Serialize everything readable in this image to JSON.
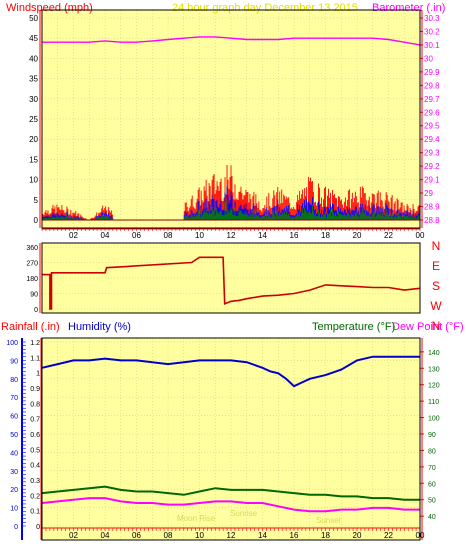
{
  "header": {
    "left_label": "Windspeed (mph)",
    "center_label": "24 hour graph day   December 13 2015",
    "right_label": "Barometer (.in)"
  },
  "panel3_header": {
    "rain_label": "Rainfall (.in)",
    "humidity_label": "Humidity (%)",
    "temperature_label": "Temperature (°F)",
    "dewpoint_label": "Dew Point (°F)"
  },
  "legend_faint": {
    "moonrise": "Moon Rise",
    "sunrise": "Sunrise",
    "sunset": "Sunset"
  },
  "colors": {
    "plot_bg": "#ffffa0",
    "frame": "#000000",
    "windspeed": "#ff0000",
    "windgust": "#0000ff",
    "windavg": "#008000",
    "barometer": "#ff00ff",
    "direction": "#cc0000",
    "humidity": "#0000cc",
    "temperature": "#006600",
    "dewpoint": "#ff00ff",
    "rain": "#0000ff",
    "title_yellow": "#e0e000",
    "axis_red": "#ff0000"
  },
  "chart_data": [
    {
      "type": "line",
      "title": "24 hour graph day   December 13 2015",
      "x_ticks": [
        "02",
        "04",
        "06",
        "08",
        "10",
        "12",
        "14",
        "16",
        "18",
        "20",
        "22",
        "00"
      ],
      "left_axis": {
        "label": "Windspeed (mph)",
        "ticks": [
          0,
          5,
          10,
          15,
          20,
          25,
          30,
          35,
          40,
          45,
          50
        ],
        "ylim": [
          0,
          50
        ]
      },
      "right_axis": {
        "label": "Barometer (.in)",
        "ticks": [
          "28.8",
          "28.9",
          "29",
          "29.1",
          "29.2",
          "29.3",
          "29.4",
          "29.5",
          "29.6",
          "29.7",
          "29.8",
          "29.9",
          "30",
          "30.1",
          "30.2",
          "30.3"
        ],
        "ylim": [
          28.8,
          30.3
        ]
      },
      "series": [
        {
          "axis": "right",
          "hours": [
            0,
            1,
            2,
            3,
            4,
            5,
            6,
            7,
            8,
            9,
            10,
            11,
            12,
            13,
            14,
            15,
            16,
            17,
            18,
            19,
            20,
            21,
            22,
            23,
            24
          ],
          "values": [
            30.12,
            30.12,
            30.12,
            30.12,
            30.13,
            30.12,
            30.12,
            30.13,
            30.14,
            30.15,
            30.16,
            30.16,
            30.15,
            30.14,
            30.14,
            30.14,
            30.15,
            30.15,
            30.15,
            30.15,
            30.15,
            30.15,
            30.14,
            30.12,
            30.1
          ]
        },
        {
          "axis": "left",
          "hours": [
            0,
            1,
            2,
            3,
            4,
            5,
            6,
            7,
            8,
            9,
            10,
            11,
            12,
            13,
            14,
            15,
            16,
            17,
            18,
            19,
            20,
            21,
            22,
            23,
            24
          ],
          "values": [
            2,
            3,
            2,
            0,
            3,
            0,
            0,
            0,
            0,
            3,
            6,
            9,
            10,
            6,
            4,
            6,
            4,
            8,
            6,
            5,
            6,
            6,
            5,
            3,
            3
          ]
        }
      ]
    },
    {
      "type": "line",
      "left_axis": {
        "ticks": [
          0,
          90,
          180,
          270,
          360
        ],
        "ylim": [
          0,
          360
        ]
      },
      "right_axis": {
        "ticks": [
          "N",
          "E",
          "S",
          "W",
          "N"
        ]
      },
      "series": [
        {
          "hours": [
            0,
            0.5,
            0.5,
            0.6,
            0.6,
            4,
            4.1,
            9.5,
            10,
            11.5,
            11.6,
            12,
            12.5,
            13,
            14,
            15,
            16,
            17,
            18,
            19,
            20,
            21,
            22,
            23,
            24
          ],
          "values": [
            200,
            200,
            0,
            0,
            210,
            210,
            240,
            270,
            300,
            300,
            30,
            45,
            50,
            60,
            75,
            80,
            90,
            110,
            140,
            135,
            130,
            125,
            125,
            110,
            120
          ]
        }
      ]
    },
    {
      "type": "line",
      "x_ticks": [
        "02",
        "04",
        "06",
        "08",
        "10",
        "12",
        "14",
        "16",
        "18",
        "20",
        "22",
        "00"
      ],
      "rain_axis": {
        "label": "Rainfall (.in)",
        "ticks": [
          "0",
          "0.1",
          "0.2",
          "0.3",
          "0.4",
          "0.5",
          "0.6",
          "0.7",
          "0.8",
          "0.9",
          "1",
          "1.1",
          "1.2"
        ],
        "ylim": [
          0,
          1.2
        ]
      },
      "humidity_axis": {
        "label": "Humidity (%)",
        "ticks": [
          0,
          10,
          20,
          30,
          40,
          50,
          60,
          70,
          80,
          90,
          100
        ],
        "ylim": [
          0,
          100
        ]
      },
      "temp_axis": {
        "label": "Temperature (°F)",
        "ticks": [
          40,
          50,
          60,
          70,
          80,
          90,
          100,
          110,
          120,
          130,
          140
        ],
        "ylim": [
          34,
          146
        ]
      },
      "series": [
        {
          "name": "Humidity (%)",
          "hours": [
            0,
            1,
            2,
            3,
            4,
            5,
            6,
            7,
            8,
            9,
            10,
            11,
            12,
            13,
            14,
            14.5,
            15,
            15.5,
            16,
            16.5,
            17,
            18,
            19,
            20,
            21,
            22,
            23,
            24
          ],
          "values": [
            86,
            88,
            90,
            90,
            91,
            90,
            90,
            89,
            88,
            89,
            90,
            90,
            90,
            89,
            86,
            84,
            83,
            80,
            76,
            78,
            80,
            82,
            85,
            90,
            92,
            92,
            92,
            92
          ]
        },
        {
          "name": "Temperature (°F)",
          "hours": [
            0,
            1,
            2,
            3,
            4,
            5,
            6,
            7,
            8,
            9,
            10,
            11,
            12,
            13,
            14,
            15,
            16,
            17,
            18,
            19,
            20,
            21,
            22,
            23,
            24
          ],
          "values": [
            54,
            55,
            56,
            57,
            58,
            56,
            55,
            55,
            54,
            53,
            55,
            57,
            56,
            56,
            56,
            55,
            54,
            53,
            53,
            52,
            52,
            51,
            51,
            50,
            50
          ]
        },
        {
          "name": "Dew Point (°F)",
          "hours": [
            0,
            1,
            2,
            3,
            4,
            5,
            6,
            7,
            8,
            9,
            10,
            11,
            12,
            13,
            14,
            15,
            16,
            17,
            18,
            19,
            20,
            21,
            22,
            23,
            24
          ],
          "values": [
            48,
            49,
            50,
            51,
            51,
            49,
            48,
            48,
            47,
            47,
            48,
            49,
            49,
            48,
            48,
            46,
            44,
            43,
            43,
            44,
            44,
            45,
            45,
            44,
            44
          ]
        }
      ]
    }
  ]
}
